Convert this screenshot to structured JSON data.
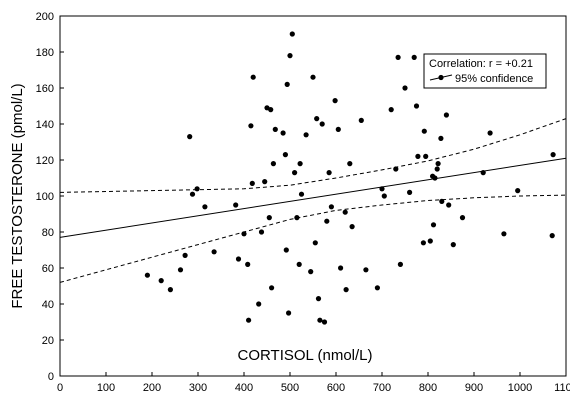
{
  "chart_data": {
    "type": "scatter",
    "title": "",
    "xlabel": "CORTISOL (nmol/L)",
    "ylabel": "FREE TESTOSTERONE (pmol/L)",
    "xlim": [
      0,
      1100
    ],
    "ylim": [
      0,
      200
    ],
    "xticks": [
      0,
      100,
      200,
      300,
      400,
      500,
      600,
      700,
      800,
      900,
      1000,
      1100
    ],
    "yticks": [
      0,
      20,
      40,
      60,
      80,
      100,
      120,
      140,
      160,
      180,
      200
    ],
    "grid": false,
    "legend_placement": "top-right",
    "legend": {
      "line1": "Correlation: r = +0.21",
      "line2": "95% confidence"
    },
    "regression": {
      "x": [
        0,
        1100
      ],
      "y": [
        77,
        121
      ]
    },
    "confidence_upper": {
      "x": [
        0,
        100,
        200,
        300,
        400,
        500,
        600,
        700,
        800,
        900,
        1000,
        1100
      ],
      "y": [
        102,
        102.5,
        103,
        103.5,
        104,
        106,
        110,
        114.5,
        119.5,
        126,
        134,
        143
      ]
    },
    "confidence_lower": {
      "x": [
        0,
        100,
        200,
        300,
        400,
        500,
        600,
        700,
        800,
        900,
        1000,
        1100
      ],
      "y": [
        52,
        59,
        66,
        73,
        80,
        87,
        92,
        95,
        97.5,
        99,
        100,
        100.5
      ]
    },
    "points": [
      [
        190,
        56
      ],
      [
        220,
        53
      ],
      [
        240,
        48
      ],
      [
        262,
        59
      ],
      [
        272,
        67
      ],
      [
        282,
        133
      ],
      [
        288,
        101
      ],
      [
        298,
        104
      ],
      [
        315,
        94
      ],
      [
        335,
        69
      ],
      [
        382,
        95
      ],
      [
        388,
        65
      ],
      [
        400,
        79
      ],
      [
        408,
        62
      ],
      [
        410,
        31
      ],
      [
        415,
        139
      ],
      [
        418,
        107
      ],
      [
        420,
        166
      ],
      [
        432,
        40
      ],
      [
        438,
        80
      ],
      [
        445,
        108
      ],
      [
        450,
        149
      ],
      [
        455,
        88
      ],
      [
        458,
        148
      ],
      [
        460,
        49
      ],
      [
        464,
        118
      ],
      [
        468,
        137
      ],
      [
        485,
        135
      ],
      [
        490,
        123
      ],
      [
        492,
        70
      ],
      [
        494,
        162
      ],
      [
        497,
        35
      ],
      [
        500,
        178
      ],
      [
        505,
        190
      ],
      [
        510,
        113
      ],
      [
        515,
        88
      ],
      [
        520,
        62
      ],
      [
        522,
        118
      ],
      [
        525,
        101
      ],
      [
        535,
        134
      ],
      [
        545,
        58
      ],
      [
        550,
        166
      ],
      [
        555,
        74
      ],
      [
        558,
        143
      ],
      [
        562,
        43
      ],
      [
        565,
        31
      ],
      [
        570,
        140
      ],
      [
        575,
        30
      ],
      [
        580,
        86
      ],
      [
        585,
        113
      ],
      [
        590,
        94
      ],
      [
        598,
        153
      ],
      [
        605,
        137
      ],
      [
        610,
        60
      ],
      [
        620,
        91
      ],
      [
        622,
        48
      ],
      [
        630,
        118
      ],
      [
        635,
        83
      ],
      [
        655,
        142
      ],
      [
        665,
        59
      ],
      [
        690,
        49
      ],
      [
        700,
        104
      ],
      [
        705,
        100
      ],
      [
        720,
        148
      ],
      [
        730,
        115
      ],
      [
        735,
        177
      ],
      [
        740,
        62
      ],
      [
        750,
        160
      ],
      [
        760,
        102
      ],
      [
        770,
        177
      ],
      [
        775,
        150
      ],
      [
        778,
        122
      ],
      [
        790,
        74
      ],
      [
        792,
        136
      ],
      [
        795,
        122
      ],
      [
        805,
        75
      ],
      [
        810,
        111
      ],
      [
        812,
        84
      ],
      [
        815,
        110
      ],
      [
        820,
        115
      ],
      [
        822,
        118
      ],
      [
        828,
        132
      ],
      [
        830,
        97
      ],
      [
        840,
        145
      ],
      [
        845,
        95
      ],
      [
        855,
        73
      ],
      [
        875,
        88
      ],
      [
        920,
        113
      ],
      [
        935,
        135
      ],
      [
        965,
        79
      ],
      [
        995,
        103
      ],
      [
        1070,
        78
      ],
      [
        1072,
        123
      ]
    ]
  }
}
